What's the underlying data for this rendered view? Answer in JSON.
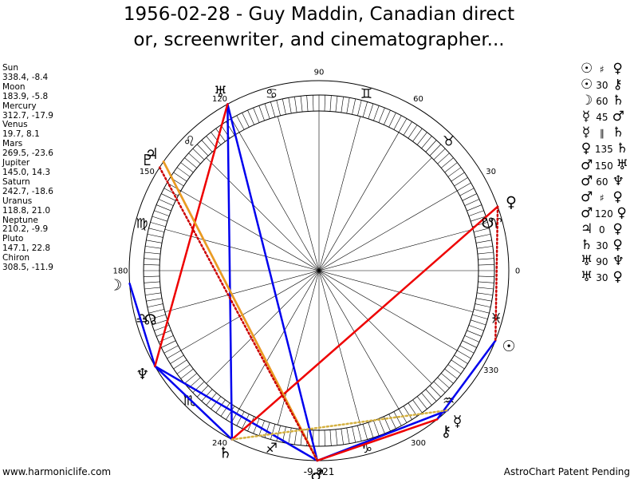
{
  "title": {
    "line1": "1956-02-28 - Guy Maddin, Canadian direct",
    "line2": "or, screenwriter, and cinematographer..."
  },
  "footer": {
    "left": "www.harmoniclife.com",
    "right": "AstroChart Patent Pending"
  },
  "chart_data": {
    "type": "astrological-wheel",
    "planets": [
      {
        "name": "Sun",
        "glyph": "☉",
        "lon": 338.4,
        "lat": -8.4,
        "lon_label": "338.4",
        "lat_label": "-8.4"
      },
      {
        "name": "Moon",
        "glyph": "☽",
        "lon": 183.9,
        "lat": -5.8,
        "lon_label": "183.9",
        "lat_label": "-5.8"
      },
      {
        "name": "Mercury",
        "glyph": "☿",
        "lon": 312.7,
        "lat": -17.9,
        "lon_label": "312.7",
        "lat_label": "-17.9"
      },
      {
        "name": "Venus",
        "glyph": "♀",
        "lon": 19.7,
        "lat": 8.1,
        "lon_label": "19.7",
        "lat_label": "8.1"
      },
      {
        "name": "Mars",
        "glyph": "♂",
        "lon": 269.5,
        "lat": -23.6,
        "lon_label": "269.5",
        "lat_label": "-23.6"
      },
      {
        "name": "Jupiter",
        "glyph": "♃",
        "lon": 145.0,
        "lat": 14.3,
        "lon_label": "145.0",
        "lat_label": "14.3"
      },
      {
        "name": "Saturn",
        "glyph": "♄",
        "lon": 242.7,
        "lat": -18.6,
        "lon_label": "242.7",
        "lat_label": "-18.6"
      },
      {
        "name": "Uranus",
        "glyph": "♅",
        "lon": 118.8,
        "lat": 21.0,
        "lon_label": "118.8",
        "lat_label": "21.0"
      },
      {
        "name": "Neptune",
        "glyph": "♆",
        "lon": 210.2,
        "lat": -9.9,
        "lon_label": "210.2",
        "lat_label": "-9.9"
      },
      {
        "name": "Pluto",
        "glyph": "♇",
        "lon": 147.1,
        "lat": 22.8,
        "lon_label": "147.1",
        "lat_label": "22.8"
      },
      {
        "name": "Chiron",
        "glyph": "⚷",
        "lon": 308.5,
        "lat": -11.9,
        "lon_label": "308.5",
        "lat_label": "-11.9"
      }
    ],
    "nodes": [
      {
        "name": "Ascending Node",
        "glyph": "☊",
        "lon": 196
      },
      {
        "name": "Descending Node",
        "glyph": "☋",
        "lon": 16
      }
    ],
    "zodiac_signs": [
      {
        "glyph": "♈",
        "lon": 15
      },
      {
        "glyph": "♉",
        "lon": 45
      },
      {
        "glyph": "♊",
        "lon": 75
      },
      {
        "glyph": "♋",
        "lon": 105
      },
      {
        "glyph": "♌",
        "lon": 135
      },
      {
        "glyph": "♍",
        "lon": 165
      },
      {
        "glyph": "♎",
        "lon": 195
      },
      {
        "glyph": "♏",
        "lon": 225
      },
      {
        "glyph": "♐",
        "lon": 255
      },
      {
        "glyph": "♑",
        "lon": 285
      },
      {
        "glyph": "♒",
        "lon": 315
      },
      {
        "glyph": "♓",
        "lon": 345
      }
    ],
    "degree_labels": [
      {
        "text": "0",
        "lon": 0
      },
      {
        "text": "30",
        "lon": 30
      },
      {
        "text": "60",
        "lon": 60
      },
      {
        "text": "90",
        "lon": 90
      },
      {
        "text": "120",
        "lon": 120
      },
      {
        "text": "150",
        "lon": 150
      },
      {
        "text": "180",
        "lon": 180
      },
      {
        "text": "240",
        "lon": 240
      },
      {
        "text": "300",
        "lon": 300
      },
      {
        "text": "330",
        "lon": 330
      }
    ],
    "bottom_label": "-9.821",
    "aspect_lines": [
      {
        "from": "Saturn",
        "to": "Uranus",
        "color": "#0000ee",
        "style": "solid"
      },
      {
        "from": "Uranus",
        "to": "Mars",
        "color": "#0000ee",
        "style": "solid"
      },
      {
        "from": "Mars",
        "to": "Neptune",
        "color": "#0000ee",
        "style": "solid"
      },
      {
        "from": "Neptune",
        "to": "Moon",
        "color": "#0000ee",
        "style": "solid"
      },
      {
        "from": "Neptune",
        "to": "Saturn",
        "color": "#0000ee",
        "style": "solid"
      },
      {
        "from": "Mars",
        "to": "Mercury",
        "color": "#0000ee",
        "style": "solid"
      },
      {
        "from": "Sun",
        "to": "Chiron",
        "color": "#0000ee",
        "style": "solid"
      },
      {
        "from": "Saturn",
        "to": "Venus",
        "color": "#ee0000",
        "style": "solid"
      },
      {
        "from": "Jupiter",
        "to": "Mars",
        "color": "#ee0000",
        "style": "solid"
      },
      {
        "from": "Uranus",
        "to": "Neptune",
        "color": "#ee0000",
        "style": "solid"
      },
      {
        "from": "Mars",
        "to": "Chiron",
        "color": "#ee0000",
        "style": "solid"
      },
      {
        "from": "Jupiter",
        "to": "Mars",
        "color": "#e8a020",
        "style": "solid"
      },
      {
        "from": "Venus",
        "to": "Sun",
        "color": "#cc0000",
        "style": "dotted"
      },
      {
        "from": "Pluto",
        "to": "Mars",
        "color": "#cc0000",
        "style": "dotted"
      },
      {
        "from": "Saturn",
        "to": "Mercury",
        "color": "#d4b040",
        "style": "dotted"
      }
    ],
    "aspects_list": [
      {
        "p1": "☉",
        "aspect": "♯",
        "p2": "♀"
      },
      {
        "p1": "☉",
        "aspect": "30",
        "p2": "⚷"
      },
      {
        "p1": "☽",
        "aspect": "60",
        "p2": "♄"
      },
      {
        "p1": "☿",
        "aspect": "45",
        "p2": "♂"
      },
      {
        "p1": "☿",
        "aspect": "∥",
        "p2": "♄"
      },
      {
        "p1": "♀",
        "aspect": "135",
        "p2": "♄"
      },
      {
        "p1": "♂",
        "aspect": "150",
        "p2": "♅"
      },
      {
        "p1": "♂",
        "aspect": "60",
        "p2": "♆"
      },
      {
        "p1": "♂",
        "aspect": "♯",
        "p2": "♀"
      },
      {
        "p1": "♂",
        "aspect": "120",
        "p2": "♀"
      },
      {
        "p1": "♃",
        "aspect": "0",
        "p2": "♀"
      },
      {
        "p1": "♄",
        "aspect": "30",
        "p2": "♀"
      },
      {
        "p1": "♅",
        "aspect": "90",
        "p2": "♆"
      },
      {
        "p1": "♅",
        "aspect": "30",
        "p2": "♀"
      }
    ]
  }
}
